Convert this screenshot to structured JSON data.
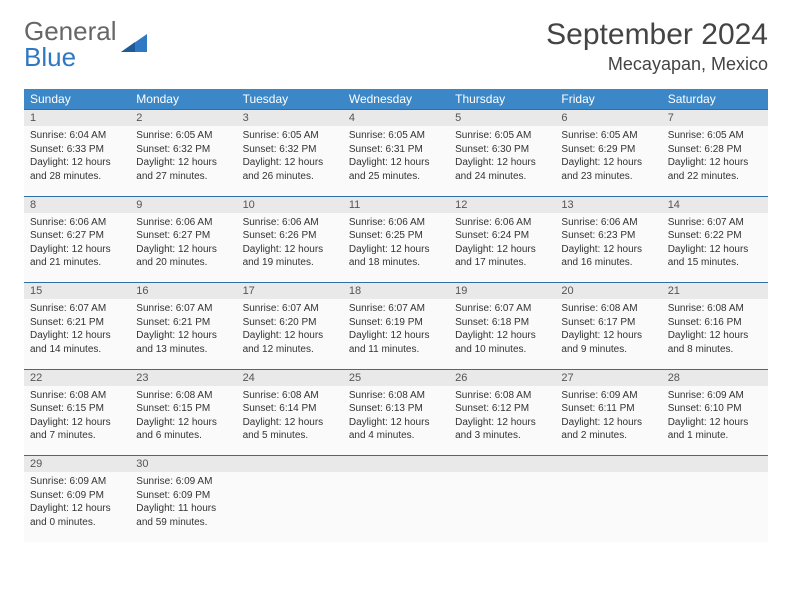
{
  "logo": {
    "text1": "General",
    "text2": "Blue"
  },
  "title": "September 2024",
  "location": "Mecayapan, Mexico",
  "colors": {
    "header_bg": "#3c87c7",
    "header_text": "#ffffff",
    "daynum_bg": "#e9e9e9",
    "cell_bg": "#fafafa",
    "border": "#2f6fa6",
    "logo_blue": "#2f78c4"
  },
  "weekdays": [
    "Sunday",
    "Monday",
    "Tuesday",
    "Wednesday",
    "Thursday",
    "Friday",
    "Saturday"
  ],
  "weeks": [
    [
      {
        "n": "1",
        "sr": "6:04 AM",
        "ss": "6:33 PM",
        "dl": "12 hours and 28 minutes."
      },
      {
        "n": "2",
        "sr": "6:05 AM",
        "ss": "6:32 PM",
        "dl": "12 hours and 27 minutes."
      },
      {
        "n": "3",
        "sr": "6:05 AM",
        "ss": "6:32 PM",
        "dl": "12 hours and 26 minutes."
      },
      {
        "n": "4",
        "sr": "6:05 AM",
        "ss": "6:31 PM",
        "dl": "12 hours and 25 minutes."
      },
      {
        "n": "5",
        "sr": "6:05 AM",
        "ss": "6:30 PM",
        "dl": "12 hours and 24 minutes."
      },
      {
        "n": "6",
        "sr": "6:05 AM",
        "ss": "6:29 PM",
        "dl": "12 hours and 23 minutes."
      },
      {
        "n": "7",
        "sr": "6:05 AM",
        "ss": "6:28 PM",
        "dl": "12 hours and 22 minutes."
      }
    ],
    [
      {
        "n": "8",
        "sr": "6:06 AM",
        "ss": "6:27 PM",
        "dl": "12 hours and 21 minutes."
      },
      {
        "n": "9",
        "sr": "6:06 AM",
        "ss": "6:27 PM",
        "dl": "12 hours and 20 minutes."
      },
      {
        "n": "10",
        "sr": "6:06 AM",
        "ss": "6:26 PM",
        "dl": "12 hours and 19 minutes."
      },
      {
        "n": "11",
        "sr": "6:06 AM",
        "ss": "6:25 PM",
        "dl": "12 hours and 18 minutes."
      },
      {
        "n": "12",
        "sr": "6:06 AM",
        "ss": "6:24 PM",
        "dl": "12 hours and 17 minutes."
      },
      {
        "n": "13",
        "sr": "6:06 AM",
        "ss": "6:23 PM",
        "dl": "12 hours and 16 minutes."
      },
      {
        "n": "14",
        "sr": "6:07 AM",
        "ss": "6:22 PM",
        "dl": "12 hours and 15 minutes."
      }
    ],
    [
      {
        "n": "15",
        "sr": "6:07 AM",
        "ss": "6:21 PM",
        "dl": "12 hours and 14 minutes."
      },
      {
        "n": "16",
        "sr": "6:07 AM",
        "ss": "6:21 PM",
        "dl": "12 hours and 13 minutes."
      },
      {
        "n": "17",
        "sr": "6:07 AM",
        "ss": "6:20 PM",
        "dl": "12 hours and 12 minutes."
      },
      {
        "n": "18",
        "sr": "6:07 AM",
        "ss": "6:19 PM",
        "dl": "12 hours and 11 minutes."
      },
      {
        "n": "19",
        "sr": "6:07 AM",
        "ss": "6:18 PM",
        "dl": "12 hours and 10 minutes."
      },
      {
        "n": "20",
        "sr": "6:08 AM",
        "ss": "6:17 PM",
        "dl": "12 hours and 9 minutes."
      },
      {
        "n": "21",
        "sr": "6:08 AM",
        "ss": "6:16 PM",
        "dl": "12 hours and 8 minutes."
      }
    ],
    [
      {
        "n": "22",
        "sr": "6:08 AM",
        "ss": "6:15 PM",
        "dl": "12 hours and 7 minutes."
      },
      {
        "n": "23",
        "sr": "6:08 AM",
        "ss": "6:15 PM",
        "dl": "12 hours and 6 minutes."
      },
      {
        "n": "24",
        "sr": "6:08 AM",
        "ss": "6:14 PM",
        "dl": "12 hours and 5 minutes."
      },
      {
        "n": "25",
        "sr": "6:08 AM",
        "ss": "6:13 PM",
        "dl": "12 hours and 4 minutes."
      },
      {
        "n": "26",
        "sr": "6:08 AM",
        "ss": "6:12 PM",
        "dl": "12 hours and 3 minutes."
      },
      {
        "n": "27",
        "sr": "6:09 AM",
        "ss": "6:11 PM",
        "dl": "12 hours and 2 minutes."
      },
      {
        "n": "28",
        "sr": "6:09 AM",
        "ss": "6:10 PM",
        "dl": "12 hours and 1 minute."
      }
    ],
    [
      {
        "n": "29",
        "sr": "6:09 AM",
        "ss": "6:09 PM",
        "dl": "12 hours and 0 minutes."
      },
      {
        "n": "30",
        "sr": "6:09 AM",
        "ss": "6:09 PM",
        "dl": "11 hours and 59 minutes."
      },
      null,
      null,
      null,
      null,
      null
    ]
  ],
  "labels": {
    "sunrise": "Sunrise:",
    "sunset": "Sunset:",
    "daylight": "Daylight:"
  }
}
